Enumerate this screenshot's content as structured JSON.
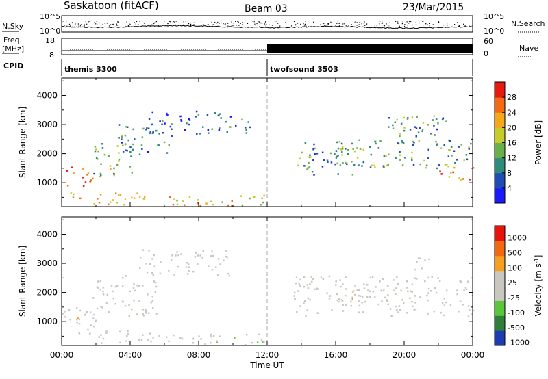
{
  "header": {
    "station": "Saskatoon (fitACF)",
    "beam": "Beam 03",
    "date": "23/Mar/2015"
  },
  "strip_labels": {
    "nsky": "N.Sky",
    "freq_line1": "Freq.",
    "freq_line2": "[MHz]",
    "cpid": "CPID",
    "nsearch": "N.Search",
    "nave": "Nave"
  },
  "strip_ticks": {
    "noise_top": "10^5",
    "noise_bottom": "10^0",
    "freq_top": "18",
    "freq_bottom": "8",
    "nave_top": "60",
    "nave_bottom": "0"
  },
  "cpid_modes": [
    {
      "name": "themis 3300",
      "start_hour": 0
    },
    {
      "name": "twofsound 3503",
      "start_hour": 12
    }
  ],
  "chart_data": [
    {
      "type": "heatmap",
      "title": "Power",
      "ylabel": "Slant Range [km]",
      "xlabel": "Time UT",
      "xlim": [
        0,
        24
      ],
      "ylim": [
        180,
        4600
      ],
      "yticks": [
        "1000",
        "2000",
        "3000",
        "4000"
      ],
      "colorbar": {
        "label": "Power [dB]",
        "tick_labels": [
          "4",
          "8",
          "12",
          "16",
          "20",
          "24",
          "28"
        ],
        "colors": [
          "#1a1aff",
          "#1f4db5",
          "#2f8c7a",
          "#6ab04a",
          "#c8cc2a",
          "#f5a81c",
          "#f56a14",
          "#e81a0e"
        ],
        "range": [
          0,
          30
        ]
      },
      "regions": [
        {
          "t0": 0.0,
          "t1": 1.8,
          "r0": 900,
          "r1": 1600,
          "value": 26
        },
        {
          "t0": 1.8,
          "t1": 4.2,
          "r0": 1200,
          "r1": 2400,
          "value": 12
        },
        {
          "t0": 0.5,
          "t1": 5.2,
          "r0": 250,
          "r1": 700,
          "value": 20
        },
        {
          "t0": 3.2,
          "t1": 6.5,
          "r0": 2000,
          "r1": 3100,
          "value": 8
        },
        {
          "t0": 5.0,
          "t1": 9.5,
          "r0": 2700,
          "r1": 3500,
          "value": 7
        },
        {
          "t0": 6.0,
          "t1": 11.8,
          "r0": 200,
          "r1": 600,
          "value": 18
        },
        {
          "t0": 9.5,
          "t1": 11.2,
          "r0": 2700,
          "r1": 3300,
          "value": 6
        },
        {
          "t0": 13.5,
          "t1": 17.0,
          "r0": 1300,
          "r1": 2400,
          "value": 9
        },
        {
          "t0": 16.0,
          "t1": 24.0,
          "r0": 1500,
          "r1": 2500,
          "value": 12
        },
        {
          "t0": 19.0,
          "t1": 22.5,
          "r0": 2300,
          "r1": 3400,
          "value": 10
        },
        {
          "t0": 22.0,
          "t1": 24.0,
          "r0": 1100,
          "r1": 1600,
          "value": 22
        }
      ]
    },
    {
      "type": "heatmap",
      "title": "Velocity",
      "ylabel": "Slant Range [km]",
      "xlabel": "Time UT",
      "xlim": [
        0,
        24
      ],
      "ylim": [
        180,
        4600
      ],
      "yticks": [
        "1000",
        "2000",
        "3000",
        "4000"
      ],
      "xticks": [
        "00:00",
        "04:00",
        "08:00",
        "12:00",
        "16:00",
        "20:00",
        "00:00"
      ],
      "colorbar": {
        "label": "Velocity [m s^-1]",
        "tick_labels": [
          "1000",
          "500",
          "100",
          "25",
          "-25",
          "-100",
          "-500",
          "-1000"
        ],
        "colors": [
          "#1c3cb4",
          "#2f7f3a",
          "#5ac63a",
          "#c8c8c0",
          "#c8c8c0",
          "#f5a020",
          "#f06a14",
          "#e8140c"
        ],
        "range": [
          -1000,
          1000
        ]
      },
      "regions": [
        {
          "t0": 0.0,
          "t1": 1.0,
          "r0": 900,
          "r1": 1500,
          "value": 0
        },
        {
          "t0": 0.7,
          "t1": 2.2,
          "r0": 500,
          "r1": 1600,
          "value": -150
        },
        {
          "t0": 1.8,
          "t1": 5.5,
          "r0": 1200,
          "r1": 2600,
          "value": 0
        },
        {
          "t0": 4.5,
          "t1": 9.8,
          "r0": 2600,
          "r1": 3500,
          "value": 0
        },
        {
          "t0": 2.0,
          "t1": 5.5,
          "r0": 250,
          "r1": 700,
          "value": -80
        },
        {
          "t0": 5.5,
          "t1": 11.8,
          "r0": 200,
          "r1": 600,
          "value": 150
        },
        {
          "t0": 13.5,
          "t1": 24.0,
          "r0": 1200,
          "r1": 2600,
          "value": 0
        },
        {
          "t0": 16.5,
          "t1": 18.0,
          "r0": 1700,
          "r1": 2200,
          "value": -200
        },
        {
          "t0": 20.5,
          "t1": 21.5,
          "r0": 2800,
          "r1": 3400,
          "value": -100
        }
      ]
    }
  ]
}
